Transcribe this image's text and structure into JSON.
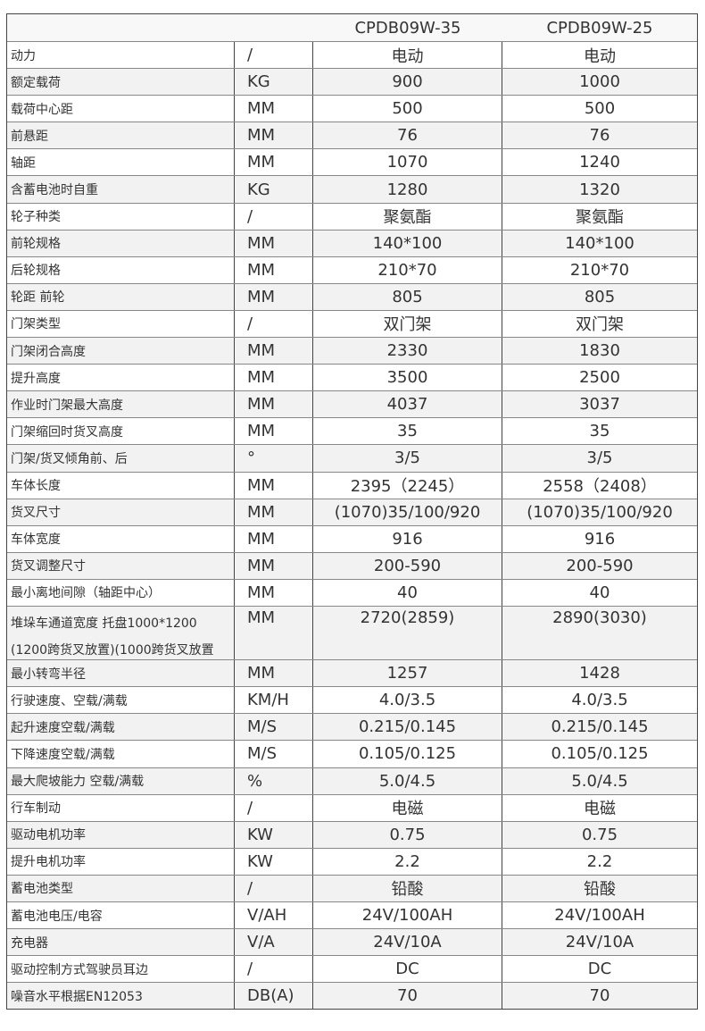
{
  "header": {
    "models": [
      "CPDB09W-35",
      "CPDB09W-25"
    ]
  },
  "rows": [
    {
      "label": "动力",
      "unit": "/",
      "v1": "电动",
      "v2": "电动"
    },
    {
      "label": "额定载荷",
      "unit": "KG",
      "v1": "900",
      "v2": "1000"
    },
    {
      "label": "载荷中心距",
      "unit": "MM",
      "v1": "500",
      "v2": "500"
    },
    {
      "label": "前悬距",
      "unit": "MM",
      "v1": "76",
      "v2": "76"
    },
    {
      "label": "轴距",
      "unit": "MM",
      "v1": "1070",
      "v2": "1240"
    },
    {
      "label": "含蓄电池时自重",
      "unit": "KG",
      "v1": "1280",
      "v2": "1320"
    },
    {
      "label": "轮子种类",
      "unit": "/",
      "v1": "聚氨酯",
      "v2": "聚氨酯"
    },
    {
      "label": "前轮规格",
      "unit": "MM",
      "v1": "140*100",
      "v2": "140*100"
    },
    {
      "label": "后轮规格",
      "unit": "MM",
      "v1": "210*70",
      "v2": "210*70"
    },
    {
      "label": "轮距 前轮",
      "unit": "MM",
      "v1": "805",
      "v2": "805"
    },
    {
      "label": "门架类型",
      "unit": "/",
      "v1": "双门架",
      "v2": "双门架"
    },
    {
      "label": "门架闭合高度",
      "unit": "MM",
      "v1": "2330",
      "v2": "1830"
    },
    {
      "label": "提升高度",
      "unit": "MM",
      "v1": "3500",
      "v2": "2500"
    },
    {
      "label": "作业时门架最大高度",
      "unit": "MM",
      "v1": "4037",
      "v2": "3037"
    },
    {
      "label": "门架缩回时货叉高度",
      "unit": "MM",
      "v1": "35",
      "v2": "35"
    },
    {
      "label": "门架/货叉倾角前、后",
      "unit": "°",
      "v1": "3/5",
      "v2": "3/5"
    },
    {
      "label": "车体长度",
      "unit": "MM",
      "v1": "2395（2245）",
      "v2": "2558（2408）"
    },
    {
      "label": "货叉尺寸",
      "unit": "MM",
      "v1": "(1070)35/100/920",
      "v2": "(1070)35/100/920"
    },
    {
      "label": "车体宽度",
      "unit": "MM",
      "v1": "916",
      "v2": "916"
    },
    {
      "label": "货叉调整尺寸",
      "unit": "MM",
      "v1": "200-590",
      "v2": "200-590"
    },
    {
      "label": "最小离地间隙（轴距中心）",
      "unit": "MM",
      "v1": "40",
      "v2": "40"
    },
    {
      "label": "堆垛车通道宽度 托盘1000*1200",
      "label2": "(1200跨货叉放置)(1000跨货叉放置",
      "unit": "MM",
      "v1": "2720(2859)",
      "v2": "2890(3030)"
    },
    {
      "label": " 最小转弯半径",
      "unit": "MM",
      "v1": "1257",
      "v2": "1428"
    },
    {
      "label": "行驶速度、空载/满载",
      "unit": "KM/H",
      "v1": "4.0/3.5",
      "v2": "4.0/3.5"
    },
    {
      "label": "起升速度空载/满载",
      "unit": "M/S",
      "v1": "0.215/0.145",
      "v2": "0.215/0.145"
    },
    {
      "label": "下降速度空载/满载",
      "unit": "M/S",
      "v1": "0.105/0.125",
      "v2": "0.105/0.125"
    },
    {
      "label": "最大爬坡能力 空载/满载",
      "unit": "%",
      "v1": "5.0/4.5",
      "v2": "5.0/4.5"
    },
    {
      "label": "行车制动",
      "unit": "/",
      "v1": "电磁",
      "v2": "电磁"
    },
    {
      "label": "驱动电机功率",
      "unit": "KW",
      "v1": "0.75",
      "v2": "0.75"
    },
    {
      "label": "提升电机功率",
      "unit": "KW",
      "v1": "2.2",
      "v2": "2.2"
    },
    {
      "label": "蓄电池类型",
      "unit": "/",
      "v1": "铅酸",
      "v2": "铅酸"
    },
    {
      "label": "蓄电池电压/电容",
      "unit": "V/AH",
      "v1": "24V/100AH",
      "v2": "24V/100AH"
    },
    {
      "label": "充电器",
      "unit": "V/A",
      "v1": "24V/10A",
      "v2": "24V/10A"
    },
    {
      "label": "驱动控制方式驾驶员耳边",
      "unit": "/",
      "v1": "DC",
      "v2": "DC"
    },
    {
      "label": "噪音水平根据EN12053",
      "unit": "DB(A)",
      "v1": "70",
      "v2": "70"
    }
  ]
}
